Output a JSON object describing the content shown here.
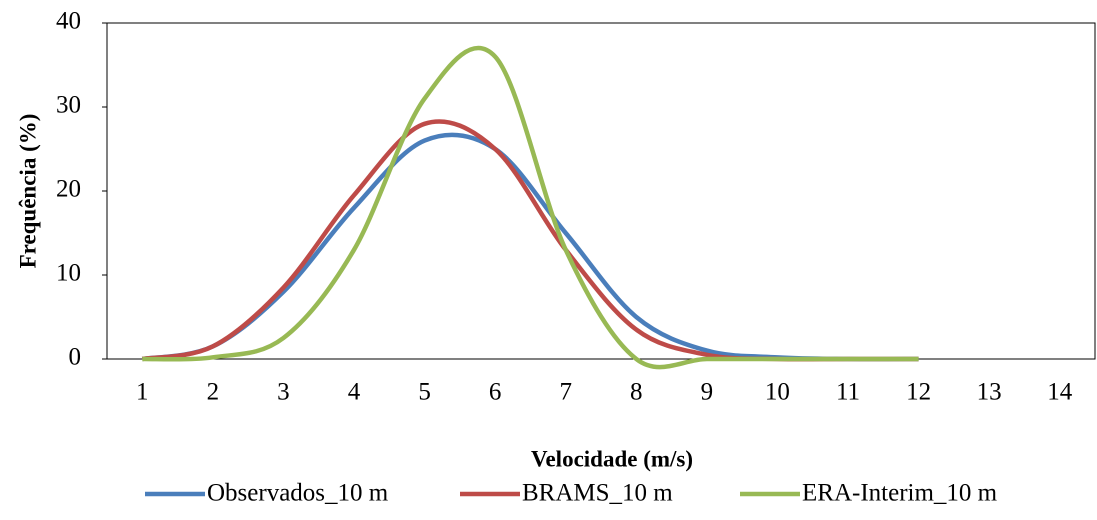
{
  "chart_data": {
    "type": "line",
    "x_label": "Velocidade (m/s)",
    "y_label": "Frequência (%)",
    "categories": [
      "1",
      "2",
      "3",
      "4",
      "5",
      "6",
      "7",
      "8",
      "9",
      "10",
      "11",
      "12",
      "13",
      "14"
    ],
    "series": [
      {
        "name": "Observados_10 m",
        "color": "#4a7ebb",
        "values": [
          0,
          1.5,
          8,
          18,
          26,
          25,
          15,
          5,
          1,
          0.2,
          0,
          0,
          null,
          null
        ]
      },
      {
        "name": "BRAMS_10 m",
        "color": "#be4b48",
        "values": [
          0,
          1.5,
          8.5,
          19.5,
          28,
          25,
          13,
          3.5,
          0.5,
          0,
          0,
          0,
          null,
          null
        ]
      },
      {
        "name": "ERA-Interim_10 m",
        "color": "#98b954",
        "values": [
          0,
          0.2,
          2.5,
          13,
          31,
          36,
          13,
          0,
          0,
          0,
          0,
          0,
          null,
          null
        ]
      }
    ],
    "ylim": [
      0,
      40
    ],
    "yticks": [
      0,
      10,
      20,
      30,
      40
    ],
    "grid": false,
    "legend": "bottom"
  }
}
